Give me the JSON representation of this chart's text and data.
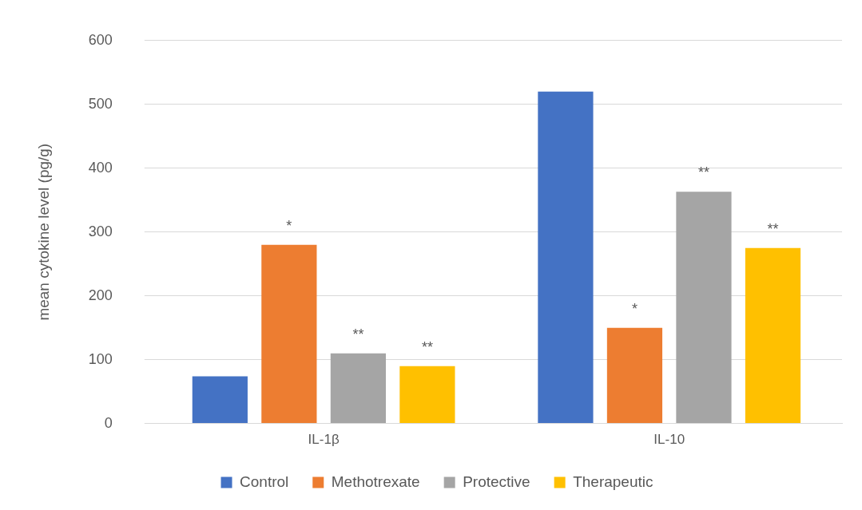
{
  "chart_data": {
    "type": "bar",
    "ylabel": "mean cytokine level (pg/g)",
    "categories": [
      "IL-1β",
      "IL-10"
    ],
    "series": [
      {
        "name": "Control",
        "color": "#4472c4",
        "values": [
          74,
          520
        ],
        "value_labels": [
          null,
          null
        ]
      },
      {
        "name": "Methotrexate",
        "color": "#ed7d31",
        "values": [
          280,
          150
        ],
        "value_labels": [
          "*",
          "*"
        ]
      },
      {
        "name": "Protective",
        "color": "#a5a5a5",
        "values": [
          110,
          363
        ],
        "value_labels": [
          "**",
          "**"
        ]
      },
      {
        "name": "Therapeutic",
        "color": "#ffc000",
        "values": [
          90,
          275
        ],
        "value_labels": [
          "**",
          "**"
        ]
      }
    ],
    "ylim": [
      0,
      600
    ],
    "yticks": [
      0,
      100,
      200,
      300,
      400,
      500,
      600
    ],
    "grid": "y",
    "legend": "bottom"
  }
}
